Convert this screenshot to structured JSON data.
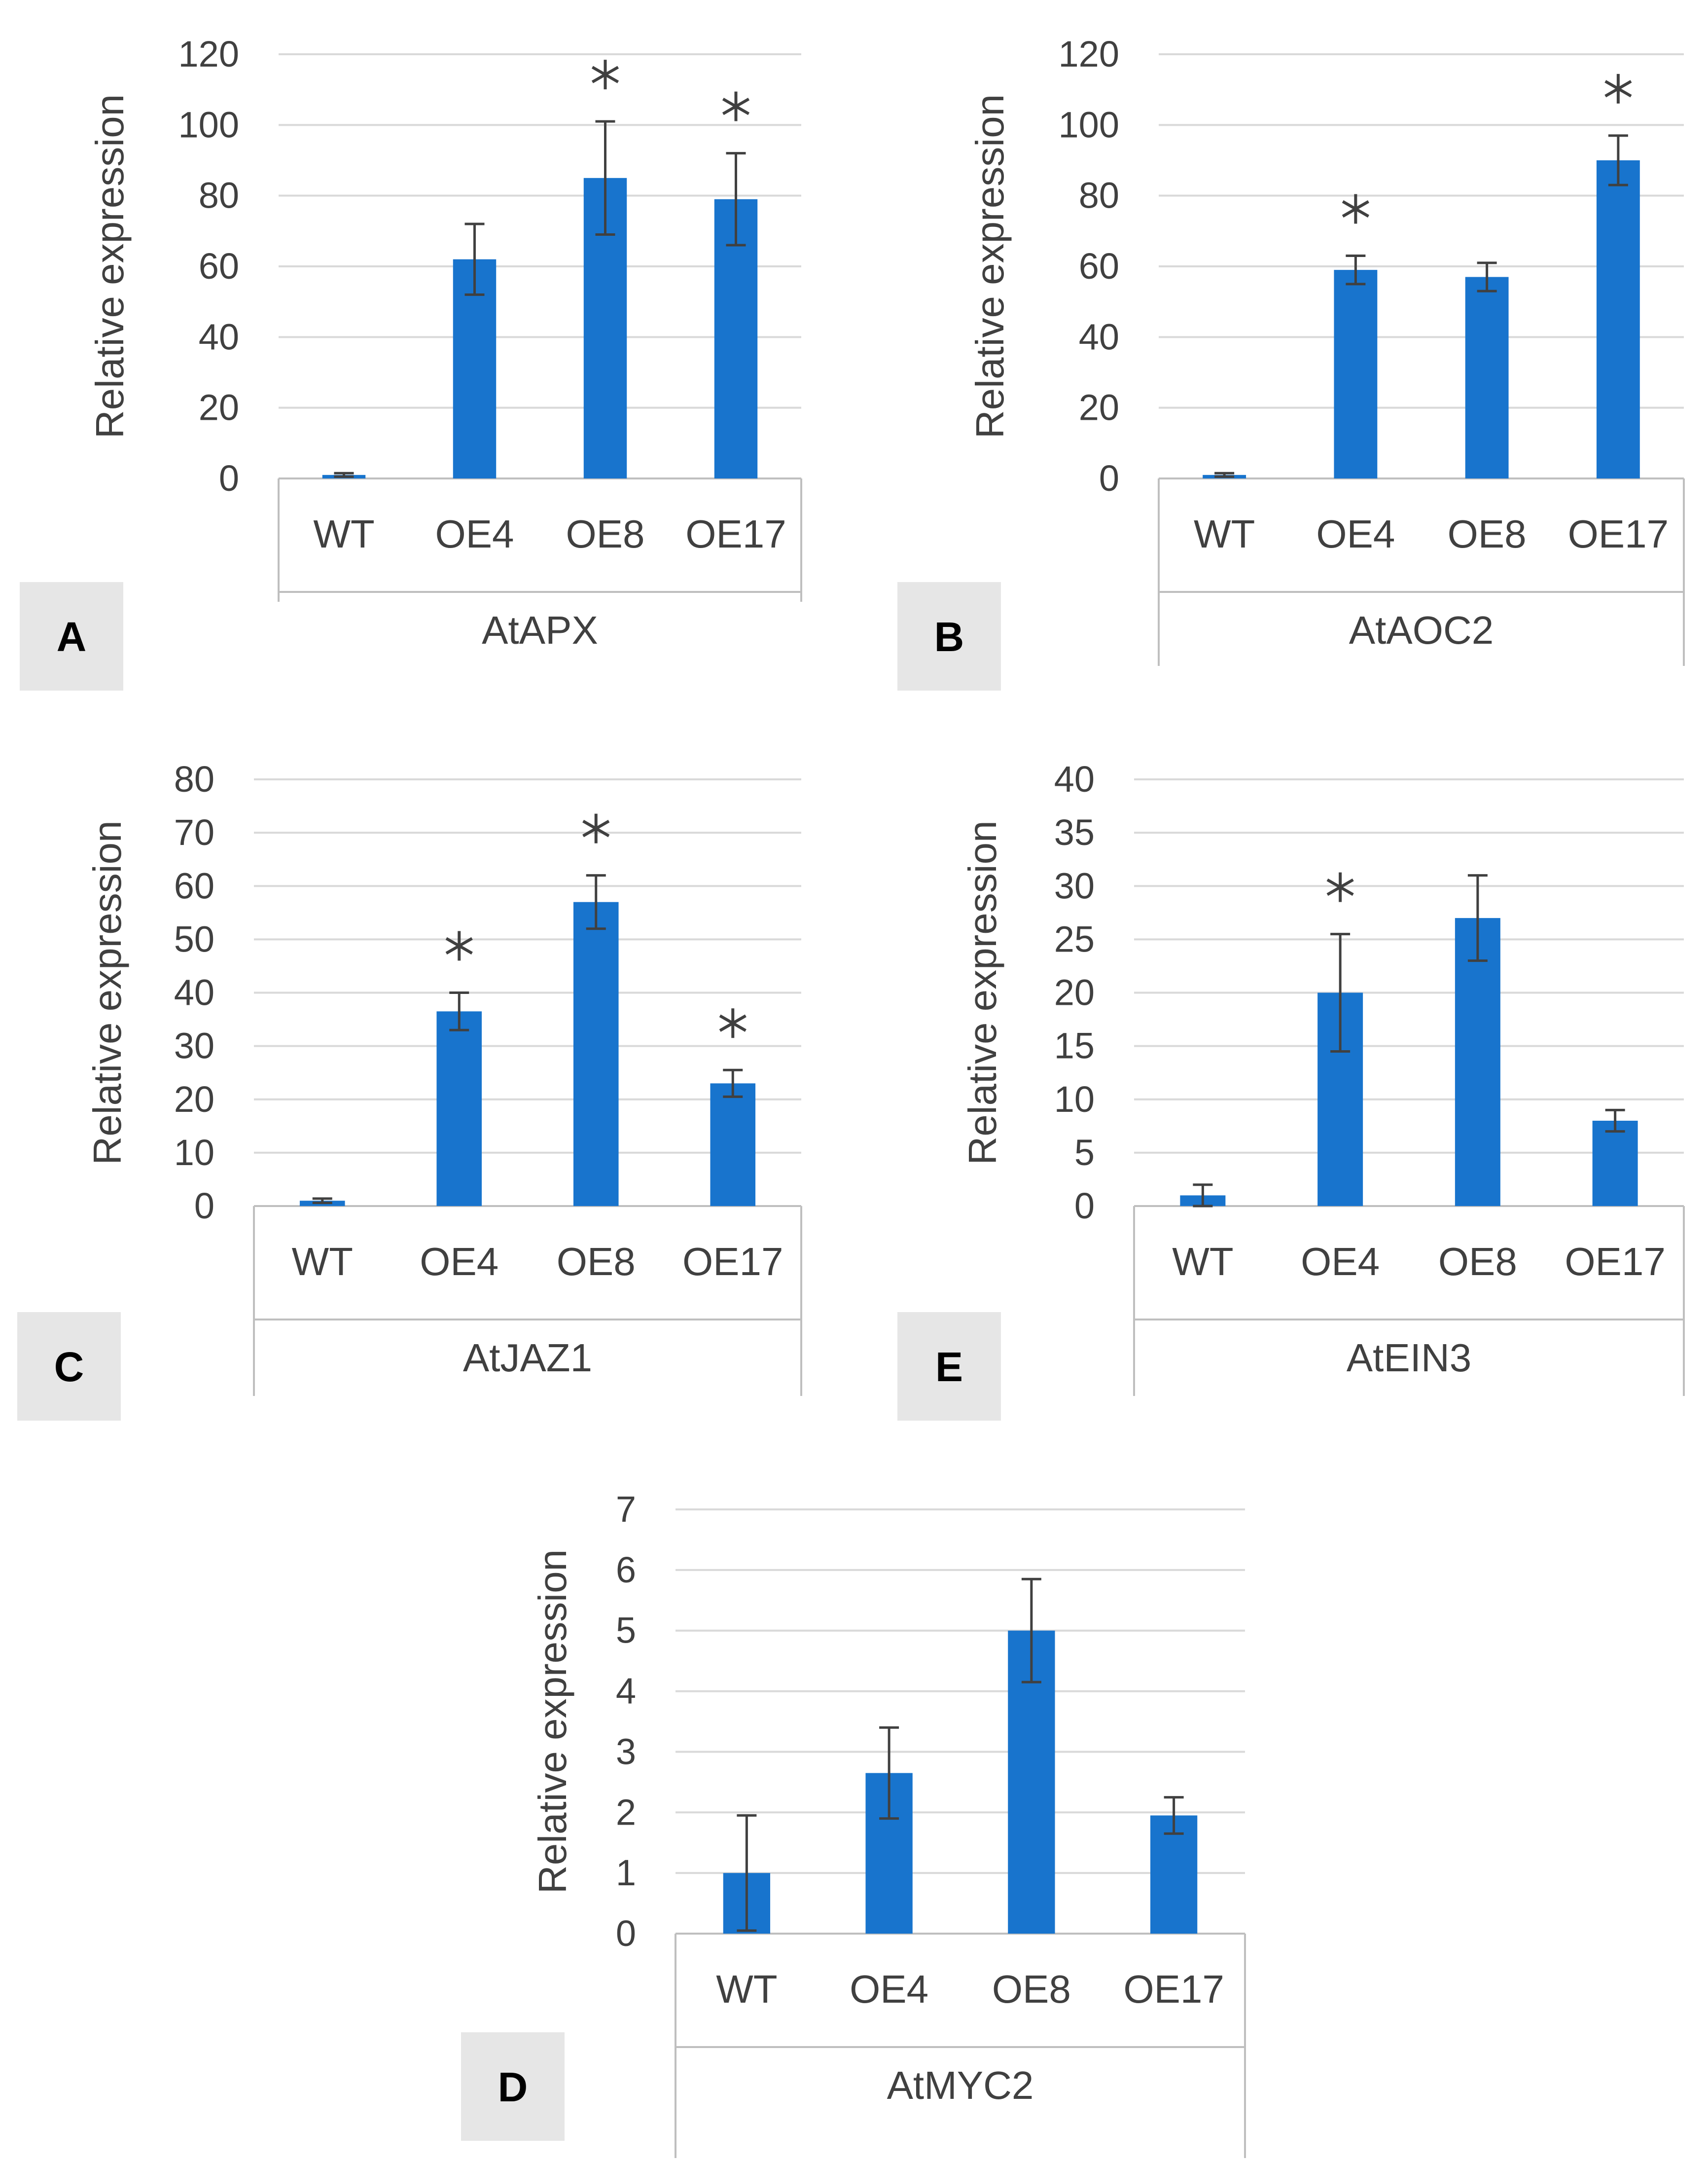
{
  "colors": {
    "bar": "#1874CD",
    "error": "#404040",
    "grid": "#D9D9D9",
    "axis": "#BFBFBF",
    "text": "#404040",
    "label_bg": "#E6E6E6"
  },
  "chart_data": [
    {
      "panel": "A",
      "type": "bar",
      "group_label": "AtAPX",
      "ylabel": "Relative expression",
      "categories": [
        "WT",
        "OE4",
        "OE8",
        "OE17"
      ],
      "values": [
        1,
        62,
        85,
        79
      ],
      "errors": [
        0.5,
        10,
        16,
        13
      ],
      "significant": [
        false,
        false,
        true,
        true
      ],
      "marker": "*",
      "ylim": [
        0,
        120
      ],
      "yticks": [
        "0",
        "20",
        "40",
        "60",
        "80",
        "100",
        "120"
      ]
    },
    {
      "panel": "B",
      "type": "bar",
      "group_label": "AtAOC2",
      "ylabel": "Relative expression",
      "categories": [
        "WT",
        "OE4",
        "OE8",
        "OE17"
      ],
      "values": [
        1,
        59,
        57,
        90
      ],
      "errors": [
        0.5,
        4,
        4,
        7
      ],
      "significant": [
        false,
        true,
        false,
        true
      ],
      "marker": "*",
      "ylim": [
        0,
        120
      ],
      "yticks": [
        "0",
        "20",
        "40",
        "60",
        "80",
        "100",
        "120"
      ]
    },
    {
      "panel": "C",
      "type": "bar",
      "group_label": "AtJAZ1",
      "ylabel": "Relative expression",
      "categories": [
        "WT",
        "OE4",
        "OE8",
        "OE17"
      ],
      "values": [
        1,
        36.5,
        57,
        23
      ],
      "errors": [
        0.4,
        3.5,
        5,
        2.5
      ],
      "significant": [
        false,
        true,
        true,
        true
      ],
      "marker": "*",
      "ylim": [
        0,
        80
      ],
      "yticks": [
        "0",
        "10",
        "20",
        "30",
        "40",
        "50",
        "60",
        "70",
        "80"
      ]
    },
    {
      "panel": "E",
      "type": "bar",
      "group_label": "AtEIN3",
      "ylabel": "Relative expression",
      "categories": [
        "WT",
        "OE4",
        "OE8",
        "OE17"
      ],
      "values": [
        1,
        20,
        27,
        8
      ],
      "errors": [
        1,
        5.5,
        4,
        1
      ],
      "significant": [
        false,
        true,
        false,
        false
      ],
      "marker": "*",
      "ylim": [
        0,
        40
      ],
      "yticks": [
        "0",
        "5",
        "10",
        "15",
        "20",
        "25",
        "30",
        "35",
        "40"
      ]
    },
    {
      "panel": "D",
      "type": "bar",
      "group_label": "AtMYC2",
      "ylabel": "Relative expression",
      "categories": [
        "WT",
        "OE4",
        "OE8",
        "OE17"
      ],
      "values": [
        1,
        2.65,
        5,
        1.95
      ],
      "errors": [
        0.95,
        0.75,
        0.85,
        0.3
      ],
      "significant": [
        false,
        false,
        false,
        false
      ],
      "marker": "*",
      "ylim": [
        0,
        7
      ],
      "yticks": [
        "0",
        "1",
        "2",
        "3",
        "4",
        "5",
        "6",
        "7"
      ]
    }
  ]
}
